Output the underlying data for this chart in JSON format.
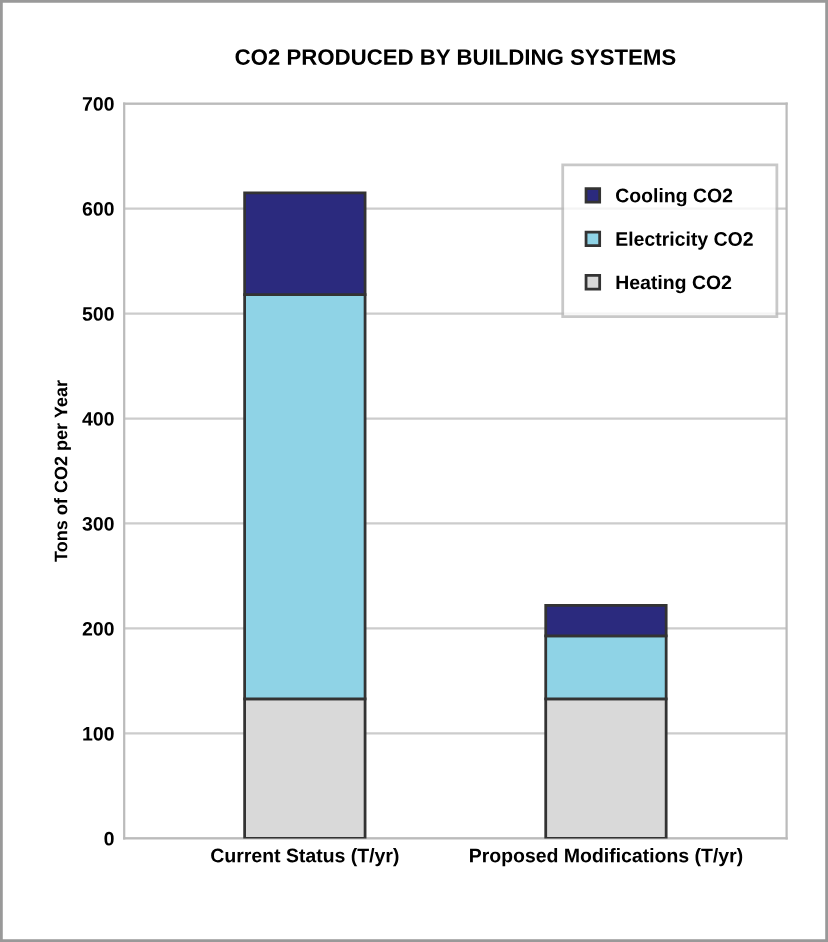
{
  "chart_data": {
    "type": "bar",
    "stacked": true,
    "title": "CO2 PRODUCED BY BUILDING SYSTEMS",
    "ylabel": "Tons of CO2 per Year",
    "categories": [
      "Current Status (T/yr)",
      "Proposed Modifications (T/yr)"
    ],
    "series": [
      {
        "name": "Heating CO2",
        "color": "#d9d9d9",
        "values": [
          133,
          133
        ]
      },
      {
        "name": "Electricity CO2",
        "color": "#8fd3e6",
        "values": [
          385,
          60
        ]
      },
      {
        "name": "Cooling CO2",
        "color": "#2b2a7e",
        "values": [
          97,
          29
        ]
      }
    ],
    "ylim": [
      0,
      700
    ],
    "yticks": [
      0,
      100,
      200,
      300,
      400,
      500,
      600,
      700
    ],
    "grid": "y",
    "legend": "top right"
  }
}
